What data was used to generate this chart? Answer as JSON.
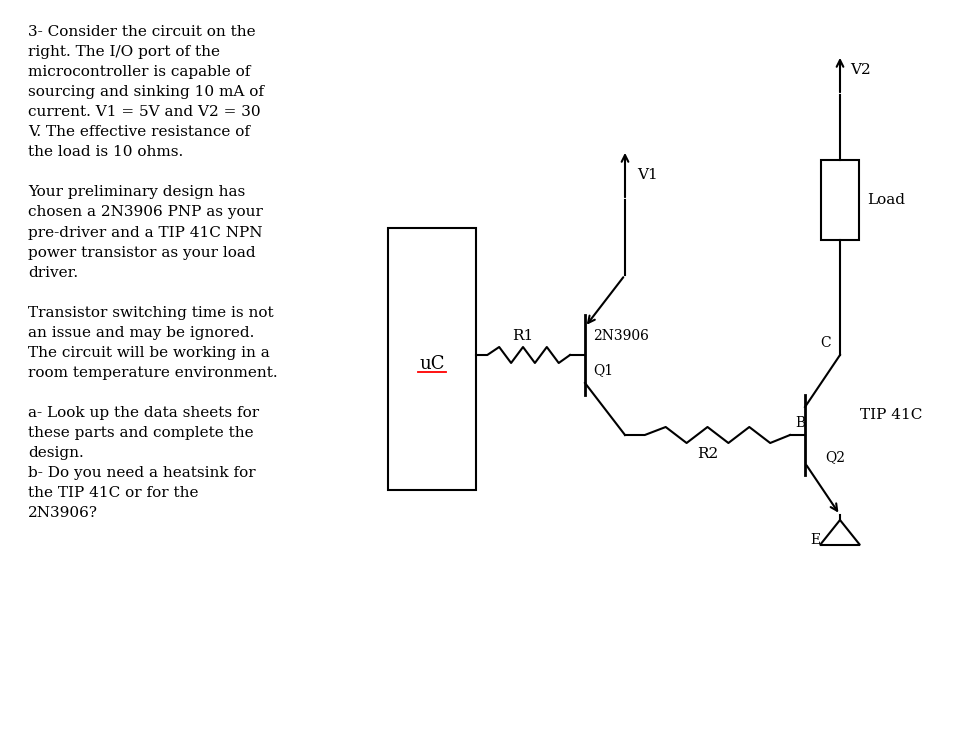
{
  "bg_color": "#ffffff",
  "text_color": "#000000",
  "text_block": "3- Consider the circuit on the\nright. The I/O port of the\nmicrocontroller is capable of\nsourcing and sinking 10 mA of\ncurrent. V1 = 5V and V2 = 30\nV. The effective resistance of\nthe load is 10 ohms.\n\nYour preliminary design has\nchosen a 2N3906 PNP as your\npre-driver and a TIP 41C NPN\npower transistor as your load\ndriver.\n\nTransistor switching time is not\nan issue and may be ignored.\nThe circuit will be working in a\nroom temperature environment.\n\na- Look up the data sheets for\nthese parts and complete the\ndesign.\nb- Do you need a heatsink for\nthe TIP 41C or for the\n2N3906?",
  "uc_label": "uC",
  "r1_label": "R1",
  "r2_label": "R2",
  "q1_label": "Q1",
  "q1_type": "2N3906",
  "q2_label": "Q2",
  "q2_type": "TIP 41C",
  "v1_label": "V1",
  "v2_label": "V2",
  "load_label": "Load",
  "b_label": "B",
  "c_label": "C",
  "e_label": "E",
  "line_color": "#000000",
  "uc_underline_color": "#ff0000"
}
